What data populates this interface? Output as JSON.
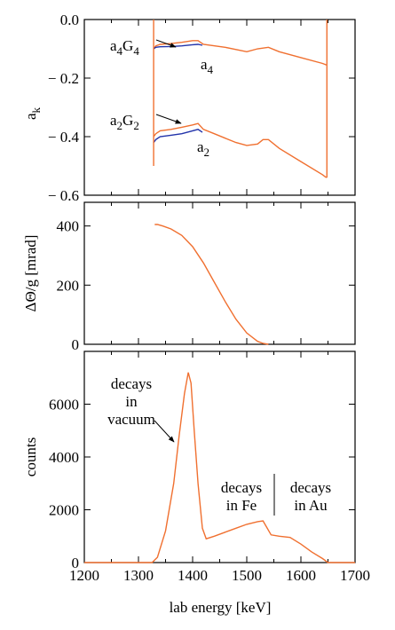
{
  "chart_data": [
    {
      "type": "line",
      "panel": "top",
      "xlabel": "",
      "ylabel": "a",
      "ylabel_sub": "k",
      "xlim": [
        1200,
        1700
      ],
      "ylim": [
        -0.6,
        0.0
      ],
      "yticks": [
        "0.0",
        "− 0.2",
        "− 0.4",
        "− 0.6"
      ],
      "ytick_values": [
        0.0,
        -0.2,
        -0.4,
        -0.6
      ],
      "colors": {
        "orange": "#f07030",
        "blue": "#2233aa"
      },
      "series": [
        {
          "name": "a4G4",
          "color": "orange",
          "x": [
            1328,
            1332,
            1340,
            1360,
            1380,
            1400,
            1410,
            1420,
            1460,
            1500,
            1520,
            1540,
            1560,
            1600,
            1640,
            1647
          ],
          "y": [
            -0.1,
            -0.09,
            -0.085,
            -0.082,
            -0.078,
            -0.072,
            -0.072,
            -0.085,
            -0.095,
            -0.11,
            -0.1,
            -0.095,
            -0.11,
            -0.13,
            -0.15,
            -0.155
          ]
        },
        {
          "name": "a4",
          "color": "blue",
          "x": [
            1328,
            1332,
            1340,
            1360,
            1380,
            1400,
            1410,
            1418
          ],
          "y": [
            -0.1,
            -0.095,
            -0.093,
            -0.092,
            -0.09,
            -0.086,
            -0.085,
            -0.088
          ]
        },
        {
          "name": "a2G2",
          "color": "orange",
          "x": [
            1328,
            1332,
            1340,
            1360,
            1380,
            1400,
            1410,
            1420,
            1440,
            1460,
            1480,
            1500,
            1520,
            1530,
            1540,
            1560,
            1600,
            1640,
            1647
          ],
          "y": [
            -0.4,
            -0.39,
            -0.38,
            -0.375,
            -0.368,
            -0.36,
            -0.355,
            -0.375,
            -0.39,
            -0.405,
            -0.42,
            -0.43,
            -0.425,
            -0.41,
            -0.41,
            -0.44,
            -0.485,
            -0.53,
            -0.54
          ]
        },
        {
          "name": "a2",
          "color": "blue",
          "x": [
            1328,
            1332,
            1340,
            1360,
            1380,
            1400,
            1410,
            1418
          ],
          "y": [
            -0.42,
            -0.41,
            -0.4,
            -0.395,
            -0.39,
            -0.38,
            -0.375,
            -0.385
          ]
        }
      ],
      "labels": [
        "a4G4",
        "a4",
        "a2G2",
        "a2"
      ]
    },
    {
      "type": "line",
      "panel": "middle",
      "xlabel": "",
      "ylabel": "ΔΘ/g [mrad]",
      "xlim": [
        1200,
        1700
      ],
      "ylim": [
        0,
        480
      ],
      "yticks": [
        "0",
        "200",
        "400"
      ],
      "ytick_values": [
        0,
        200,
        400
      ],
      "series": [
        {
          "color": "orange",
          "x": [
            1330,
            1335,
            1345,
            1360,
            1380,
            1400,
            1420,
            1440,
            1460,
            1480,
            1500,
            1520,
            1530,
            1540
          ],
          "y": [
            405,
            405,
            400,
            390,
            368,
            330,
            275,
            210,
            145,
            85,
            38,
            10,
            3,
            0
          ]
        }
      ]
    },
    {
      "type": "line",
      "panel": "bottom",
      "xlabel": "lab energy [keV]",
      "ylabel": "counts",
      "xlim": [
        1200,
        1700
      ],
      "ylim": [
        0,
        8000
      ],
      "xticks": [
        "1200",
        "1300",
        "1400",
        "1500",
        "1600",
        "1700"
      ],
      "xtick_values": [
        1200,
        1300,
        1400,
        1500,
        1600,
        1700
      ],
      "yticks": [
        "0",
        "2000",
        "4000",
        "6000"
      ],
      "ytick_values": [
        0,
        2000,
        4000,
        6000
      ],
      "series": [
        {
          "color": "orange",
          "x": [
            1200,
            1325,
            1335,
            1350,
            1365,
            1375,
            1385,
            1392,
            1397,
            1403,
            1410,
            1418,
            1425,
            1440,
            1460,
            1480,
            1500,
            1520,
            1530,
            1535,
            1545,
            1560,
            1580,
            1600,
            1620,
            1640,
            1650,
            1700
          ],
          "y": [
            0,
            0,
            200,
            1200,
            3000,
            4800,
            6400,
            7200,
            6800,
            5000,
            3000,
            1300,
            900,
            1000,
            1150,
            1300,
            1450,
            1550,
            1580,
            1400,
            1050,
            1000,
            950,
            700,
            400,
            150,
            0,
            0
          ]
        }
      ],
      "annotations": [
        "decays\nin\nvacuum",
        "decays\nin Fe",
        "decays\nin Au"
      ]
    }
  ],
  "text": {
    "a4G4_main": "a",
    "a4G4_sub1": "4",
    "a4G4_mid": "G",
    "a4G4_sub2": "4",
    "a4_main": "a",
    "a4_sub": "4",
    "a2G2_main": "a",
    "a2G2_sub1": "2",
    "a2G2_mid": "G",
    "a2G2_sub2": "2",
    "a2_main": "a",
    "a2_sub": "2",
    "vac1": "decays",
    "vac2": "in",
    "vac3": "vacuum",
    "fe1": "decays",
    "fe2": "in Fe",
    "au1": "decays",
    "au2": "in Au"
  }
}
